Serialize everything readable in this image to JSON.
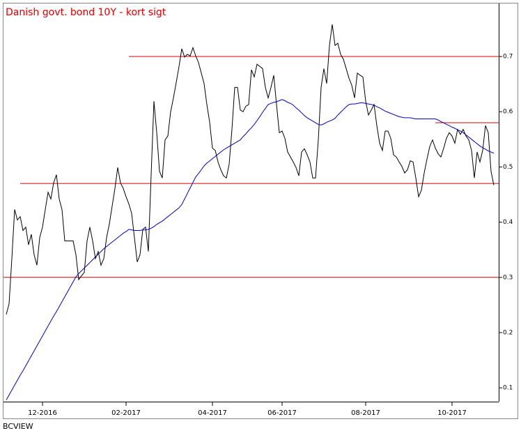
{
  "chart_data": {
    "type": "line",
    "title": "Danish govt. bond 10Y - kort sigt",
    "source": "BCVIEW",
    "categories": [
      null,
      null,
      null,
      null,
      null,
      null,
      null,
      null,
      null,
      null,
      null,
      null,
      null,
      "12-2016",
      null,
      null,
      null,
      null,
      null,
      null,
      null,
      null,
      null,
      null,
      null,
      null,
      null,
      null,
      null,
      null,
      null,
      null,
      null,
      null,
      null,
      null,
      null,
      null,
      null,
      null,
      null,
      null,
      null,
      "02-2017",
      null,
      null,
      null,
      null,
      null,
      null,
      null,
      null,
      null,
      null,
      null,
      null,
      null,
      null,
      null,
      null,
      null,
      null,
      null,
      null,
      null,
      null,
      null,
      null,
      null,
      null,
      null,
      null,
      null,
      null,
      "04-2017",
      null,
      null,
      null,
      null,
      null,
      null,
      null,
      null,
      null,
      null,
      null,
      null,
      null,
      null,
      null,
      null,
      null,
      null,
      null,
      null,
      null,
      null,
      null,
      null,
      "06-2017",
      null,
      null,
      null,
      null,
      null,
      null,
      null,
      null,
      null,
      null,
      null,
      null,
      null,
      null,
      null,
      null,
      null,
      null,
      null,
      null,
      null,
      null,
      null,
      null,
      null,
      null,
      null,
      null,
      null,
      "08-2017",
      null,
      null,
      null,
      null,
      null,
      null,
      null,
      null,
      null,
      null,
      null,
      null,
      null,
      null,
      null,
      null,
      null,
      null,
      null,
      null,
      null,
      null,
      null,
      null,
      null,
      null,
      null,
      null,
      null,
      null,
      "10-2017",
      null,
      null,
      null,
      null,
      null,
      null,
      null,
      null,
      null,
      null,
      null,
      null,
      null,
      null,
      null
    ],
    "series": [
      {
        "color": "#000000",
        "values": [
          0.233,
          0.252,
          0.334,
          0.423,
          0.404,
          0.41,
          0.385,
          0.391,
          0.359,
          0.378,
          0.341,
          0.322,
          0.372,
          0.391,
          0.423,
          0.454,
          0.442,
          0.471,
          0.486,
          0.442,
          0.423,
          0.366,
          0.366,
          0.366,
          0.366,
          0.341,
          0.296,
          0.303,
          0.309,
          0.366,
          0.391,
          0.366,
          0.334,
          0.347,
          0.322,
          0.334,
          0.372,
          0.397,
          0.429,
          0.461,
          0.499,
          0.471,
          0.461,
          0.446,
          0.433,
          0.416,
          0.372,
          0.328,
          0.341,
          0.387,
          0.391,
          0.347,
          0.486,
          0.619,
          0.562,
          0.492,
          0.48,
          0.549,
          0.556,
          0.6,
          0.625,
          0.653,
          0.682,
          0.714,
          0.699,
          0.704,
          0.701,
          0.716,
          0.701,
          0.689,
          0.67,
          0.651,
          0.613,
          0.581,
          0.534,
          0.53,
          0.509,
          0.495,
          0.484,
          0.48,
          0.505,
          0.568,
          0.644,
          0.644,
          0.603,
          0.6,
          0.61,
          0.613,
          0.676,
          0.663,
          0.686,
          0.682,
          0.678,
          0.644,
          0.625,
          0.644,
          0.666,
          0.613,
          0.562,
          0.565,
          0.552,
          0.527,
          0.518,
          0.509,
          0.499,
          0.484,
          0.527,
          0.533,
          0.522,
          0.509,
          0.48,
          0.48,
          0.549,
          0.644,
          0.678,
          0.651,
          0.72,
          0.758,
          0.72,
          0.724,
          0.704,
          0.695,
          0.678,
          0.661,
          0.648,
          0.625,
          0.67,
          0.666,
          0.663,
          0.619,
          0.594,
          0.603,
          0.613,
          0.575,
          0.543,
          0.53,
          0.565,
          0.565,
          0.552,
          0.522,
          0.518,
          0.509,
          0.501,
          0.489,
          0.495,
          0.511,
          0.509,
          0.48,
          0.446,
          0.458,
          0.489,
          0.514,
          0.537,
          0.549,
          0.534,
          0.524,
          0.518,
          0.534,
          0.552,
          0.562,
          0.556,
          0.543,
          0.568,
          0.559,
          0.568,
          0.556,
          0.549,
          0.53,
          0.48,
          0.527,
          0.509,
          0.53,
          0.575,
          0.562,
          0.492,
          0.467
        ]
      },
      {
        "color": "#0000cc",
        "values": [
          0.078,
          0.087,
          0.096,
          0.105,
          0.114,
          0.123,
          0.131,
          0.14,
          0.149,
          0.158,
          0.167,
          0.176,
          0.185,
          0.194,
          0.203,
          0.212,
          0.221,
          0.23,
          0.238,
          0.247,
          0.256,
          0.265,
          0.274,
          0.283,
          0.292,
          0.301,
          0.307,
          0.312,
          0.317,
          0.322,
          0.327,
          0.332,
          0.337,
          0.342,
          0.347,
          0.352,
          0.356,
          0.36,
          0.364,
          0.368,
          0.372,
          0.376,
          0.38,
          0.383,
          0.387,
          0.386,
          0.385,
          0.385,
          0.385,
          0.386,
          0.386,
          0.387,
          0.389,
          0.392,
          0.396,
          0.399,
          0.402,
          0.406,
          0.41,
          0.414,
          0.418,
          0.422,
          0.426,
          0.432,
          0.442,
          0.452,
          0.462,
          0.472,
          0.482,
          0.488,
          0.495,
          0.502,
          0.507,
          0.511,
          0.515,
          0.519,
          0.523,
          0.527,
          0.531,
          0.534,
          0.537,
          0.54,
          0.543,
          0.546,
          0.549,
          0.555,
          0.56,
          0.566,
          0.571,
          0.577,
          0.584,
          0.591,
          0.599,
          0.606,
          0.613,
          0.615,
          0.617,
          0.618,
          0.62,
          0.622,
          0.62,
          0.617,
          0.615,
          0.612,
          0.607,
          0.603,
          0.598,
          0.593,
          0.589,
          0.586,
          0.583,
          0.58,
          0.577,
          0.576,
          0.578,
          0.581,
          0.583,
          0.585,
          0.588,
          0.594,
          0.599,
          0.604,
          0.609,
          0.613,
          0.614,
          0.614,
          0.615,
          0.616,
          0.616,
          0.615,
          0.614,
          0.613,
          0.612,
          0.609,
          0.607,
          0.604,
          0.601,
          0.599,
          0.597,
          0.595,
          0.593,
          0.591,
          0.59,
          0.589,
          0.589,
          0.589,
          0.588,
          0.587,
          0.587,
          0.587,
          0.587,
          0.587,
          0.587,
          0.587,
          0.587,
          0.585,
          0.582,
          0.58,
          0.577,
          0.575,
          0.572,
          0.57,
          0.567,
          0.565,
          0.562,
          0.558,
          0.554,
          0.55,
          0.546,
          0.542,
          0.538,
          0.535,
          0.532,
          0.529,
          0.527,
          0.525
        ]
      }
    ],
    "reference_lines": [
      {
        "value": 0.7,
        "from": 45,
        "color": "#d40000"
      },
      {
        "value": 0.58,
        "from": 155,
        "color": "#d40000"
      },
      {
        "value": 0.47,
        "from": 6,
        "color": "#d40000"
      },
      {
        "value": 0.3,
        "from": 0,
        "color": "#d40000"
      }
    ],
    "ylim": [
      0.075,
      0.796
    ],
    "yticks": [
      0.1,
      0.2,
      0.3,
      0.4,
      0.5,
      0.6,
      0.7
    ],
    "y_axis_side": "right"
  }
}
